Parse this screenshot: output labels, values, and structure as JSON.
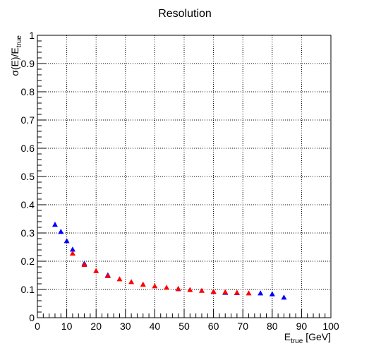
{
  "chart_data": {
    "type": "scatter",
    "title": "Resolution",
    "xlabel": {
      "main": "E",
      "sub": "true",
      "rest": " [GeV]"
    },
    "ylabel": {
      "main": "σ(E)/E",
      "sub": "true"
    },
    "xlim": [
      0,
      100
    ],
    "ylim": [
      0,
      1
    ],
    "x_ticks": [
      0,
      10,
      20,
      30,
      40,
      50,
      60,
      70,
      80,
      90,
      100
    ],
    "y_ticks": [
      0,
      0.1,
      0.2,
      0.3,
      0.4,
      0.5,
      0.6,
      0.7,
      0.8,
      0.9,
      1
    ],
    "grid": true,
    "legend": "none",
    "marker": "triangle",
    "series": [
      {
        "color": "#0000ff",
        "points": [
          [
            6,
            0.33
          ],
          [
            8,
            0.305
          ],
          [
            10,
            0.272
          ],
          [
            12,
            0.242
          ],
          [
            16,
            0.192
          ],
          [
            24,
            0.151
          ],
          [
            48,
            0.102
          ],
          [
            60,
            0.092
          ],
          [
            64,
            0.089
          ],
          [
            68,
            0.088
          ],
          [
            76,
            0.087
          ],
          [
            80,
            0.084
          ],
          [
            84,
            0.072
          ]
        ]
      },
      {
        "color": "#ff0000",
        "points": [
          [
            12,
            0.228
          ],
          [
            16,
            0.188
          ],
          [
            20,
            0.166
          ],
          [
            24,
            0.148
          ],
          [
            28,
            0.137
          ],
          [
            32,
            0.127
          ],
          [
            36,
            0.118
          ],
          [
            40,
            0.112
          ],
          [
            44,
            0.107
          ],
          [
            48,
            0.103
          ],
          [
            52,
            0.099
          ],
          [
            56,
            0.096
          ],
          [
            60,
            0.093
          ],
          [
            64,
            0.091
          ],
          [
            68,
            0.089
          ],
          [
            72,
            0.087
          ]
        ]
      }
    ]
  }
}
